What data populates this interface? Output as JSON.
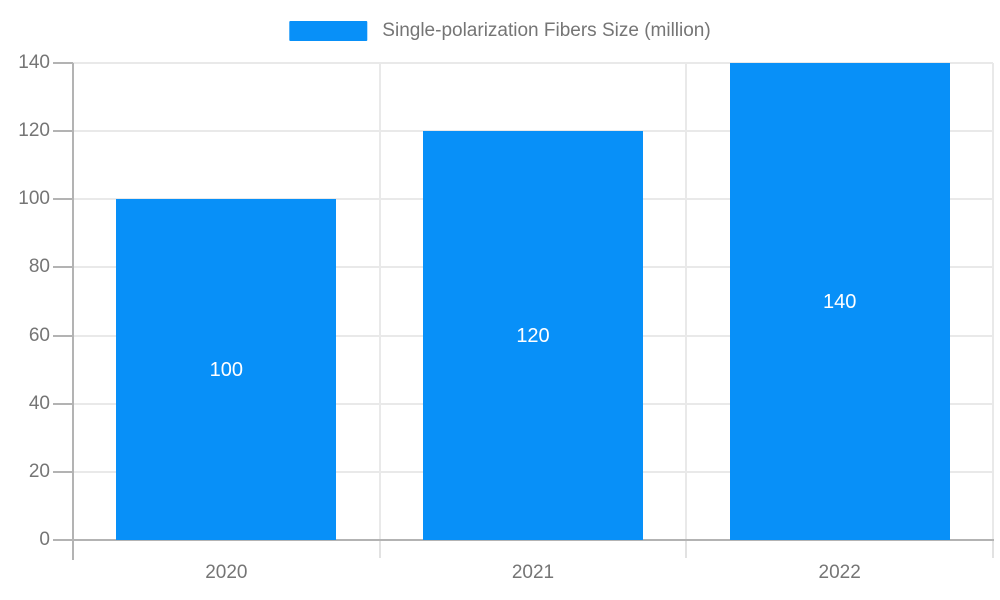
{
  "chart_data": {
    "type": "bar",
    "title": "",
    "legend": "Single-polarization Fibers Size (million)",
    "legend_position": "top-center",
    "categories": [
      "2020",
      "2021",
      "2022"
    ],
    "series": [
      {
        "name": "Single-polarization Fibers Size (million)",
        "values": [
          100,
          120,
          140
        ]
      }
    ],
    "data_labels": [
      "100",
      "120",
      "140"
    ],
    "xlabel": "",
    "ylabel": "",
    "ylim": [
      0,
      140
    ],
    "yticks": [
      0,
      20,
      40,
      60,
      80,
      100,
      120,
      140
    ],
    "grid": true
  },
  "colors": {
    "bar": "#0890f8",
    "axis_line": "#b3b3b3",
    "gridline": "#e9e9e9",
    "category_tick": "#e2e2e2",
    "text": "#757575",
    "bar_label": "#ffffff",
    "background": "#ffffff"
  }
}
